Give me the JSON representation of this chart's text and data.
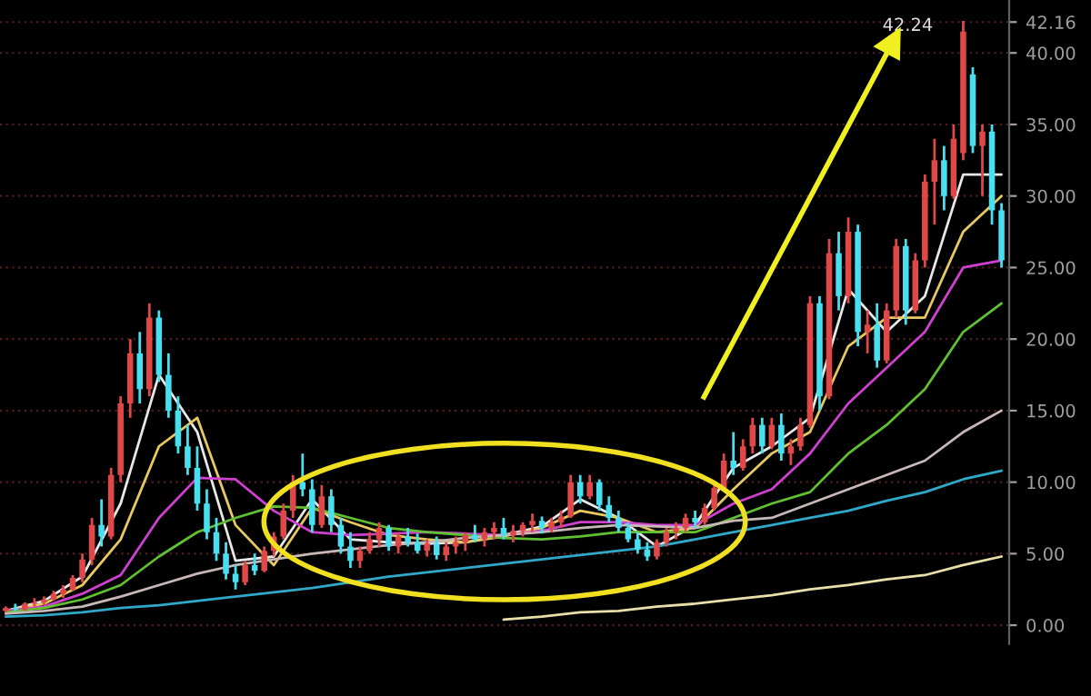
{
  "chart_data": {
    "type": "candlestick",
    "categories": [
      null,
      null,
      null,
      null,
      null,
      null,
      null,
      null,
      null,
      null,
      null,
      null,
      null,
      null,
      null,
      null,
      null,
      null,
      null,
      null,
      null,
      null,
      null,
      null,
      null,
      null,
      null,
      null,
      null,
      null,
      null,
      null,
      null,
      null,
      null,
      null,
      null,
      null,
      null,
      null,
      null,
      null,
      null,
      null,
      null,
      null,
      null,
      null,
      null,
      null,
      null,
      null,
      null,
      null,
      null,
      null,
      null,
      null,
      null,
      null,
      null,
      null,
      null,
      null,
      null,
      null,
      null,
      null,
      null,
      null,
      null,
      null,
      null,
      null,
      null,
      null,
      null,
      null,
      null,
      null,
      null,
      null,
      null,
      null,
      null,
      null,
      null,
      null,
      null,
      null,
      null,
      null,
      null,
      null,
      null,
      null,
      null,
      null,
      null,
      null,
      null,
      null,
      null,
      null,
      null
    ],
    "ohlc": [
      [
        1.0,
        1.3,
        0.9,
        1.2
      ],
      [
        1.2,
        1.5,
        1.0,
        1.1
      ],
      [
        1.1,
        1.6,
        1.0,
        1.5
      ],
      [
        1.5,
        1.9,
        1.3,
        1.6
      ],
      [
        1.6,
        2.0,
        1.4,
        1.8
      ],
      [
        1.8,
        2.4,
        1.7,
        2.2
      ],
      [
        2.2,
        2.8,
        1.9,
        2.5
      ],
      [
        2.5,
        3.5,
        2.4,
        3.3
      ],
      [
        3.3,
        5.0,
        3.0,
        4.6
      ],
      [
        4.6,
        7.5,
        4.2,
        7.0
      ],
      [
        7.0,
        8.8,
        5.5,
        6.2
      ],
      [
        6.2,
        11.0,
        6.0,
        10.5
      ],
      [
        10.5,
        16.0,
        10.0,
        15.5
      ],
      [
        15.5,
        20.0,
        14.5,
        19.0
      ],
      [
        19.0,
        20.5,
        15.5,
        16.5
      ],
      [
        16.5,
        22.5,
        16.0,
        21.5
      ],
      [
        21.5,
        22.0,
        17.0,
        17.5
      ],
      [
        17.5,
        19.0,
        14.5,
        15.0
      ],
      [
        15.0,
        16.0,
        12.0,
        12.5
      ],
      [
        12.5,
        14.0,
        10.5,
        11.0
      ],
      [
        11.0,
        12.5,
        8.0,
        8.5
      ],
      [
        8.5,
        9.5,
        6.0,
        6.5
      ],
      [
        6.5,
        7.5,
        4.5,
        5.0
      ],
      [
        5.0,
        5.8,
        3.2,
        3.6
      ],
      [
        3.6,
        4.2,
        2.5,
        3.0
      ],
      [
        3.0,
        4.5,
        2.8,
        4.2
      ],
      [
        4.2,
        5.0,
        3.5,
        3.8
      ],
      [
        3.8,
        5.5,
        3.7,
        5.2
      ],
      [
        5.2,
        6.5,
        4.8,
        6.2
      ],
      [
        6.2,
        8.5,
        6.0,
        8.0
      ],
      [
        8.0,
        10.5,
        7.5,
        10.0
      ],
      [
        10.0,
        12.0,
        9.0,
        9.5
      ],
      [
        9.5,
        10.2,
        6.5,
        7.0
      ],
      [
        7.0,
        9.8,
        6.8,
        9.0
      ],
      [
        9.0,
        9.5,
        6.5,
        7.0
      ],
      [
        7.0,
        7.5,
        5.0,
        5.5
      ],
      [
        5.5,
        6.5,
        4.0,
        4.5
      ],
      [
        4.5,
        5.5,
        4.0,
        5.2
      ],
      [
        5.2,
        6.5,
        5.0,
        6.0
      ],
      [
        6.0,
        7.2,
        5.5,
        6.8
      ],
      [
        6.8,
        7.0,
        5.2,
        5.5
      ],
      [
        5.5,
        6.5,
        5.0,
        6.2
      ],
      [
        6.2,
        6.8,
        5.5,
        5.8
      ],
      [
        5.8,
        6.4,
        5.0,
        5.2
      ],
      [
        5.2,
        6.0,
        4.8,
        5.7
      ],
      [
        5.7,
        6.2,
        4.6,
        4.9
      ],
      [
        4.9,
        5.8,
        4.5,
        5.5
      ],
      [
        5.5,
        6.2,
        5.0,
        5.8
      ],
      [
        5.8,
        6.5,
        5.2,
        6.3
      ],
      [
        6.3,
        7.0,
        5.8,
        6.0
      ],
      [
        6.0,
        6.8,
        5.5,
        6.5
      ],
      [
        6.5,
        7.2,
        6.0,
        6.8
      ],
      [
        6.8,
        7.5,
        6.0,
        6.3
      ],
      [
        6.3,
        7.0,
        5.8,
        6.6
      ],
      [
        6.6,
        7.2,
        6.2,
        7.0
      ],
      [
        7.0,
        7.8,
        6.5,
        7.3
      ],
      [
        7.3,
        7.6,
        6.4,
        6.8
      ],
      [
        6.8,
        7.5,
        6.5,
        7.2
      ],
      [
        7.2,
        8.0,
        6.8,
        7.6
      ],
      [
        7.6,
        10.5,
        7.5,
        10.0
      ],
      [
        10.0,
        10.5,
        8.5,
        9.0
      ],
      [
        9.0,
        10.5,
        8.8,
        10.0
      ],
      [
        10.0,
        10.2,
        8.0,
        8.4
      ],
      [
        8.4,
        9.0,
        7.2,
        7.5
      ],
      [
        7.5,
        8.0,
        6.5,
        6.8
      ],
      [
        6.8,
        7.2,
        5.8,
        6.0
      ],
      [
        6.0,
        6.5,
        5.0,
        5.3
      ],
      [
        5.3,
        5.8,
        4.5,
        4.8
      ],
      [
        4.8,
        6.0,
        4.6,
        5.8
      ],
      [
        5.8,
        6.8,
        5.5,
        6.5
      ],
      [
        6.5,
        7.2,
        6.0,
        6.8
      ],
      [
        6.8,
        7.8,
        6.5,
        7.5
      ],
      [
        7.5,
        8.0,
        6.8,
        7.2
      ],
      [
        7.2,
        8.5,
        7.0,
        8.2
      ],
      [
        8.2,
        10.0,
        8.0,
        9.6
      ],
      [
        9.6,
        12.0,
        9.4,
        11.5
      ],
      [
        11.5,
        13.5,
        10.5,
        11.0
      ],
      [
        11.0,
        13.0,
        10.8,
        12.5
      ],
      [
        12.5,
        14.5,
        12.0,
        14.0
      ],
      [
        14.0,
        14.5,
        12.0,
        12.5
      ],
      [
        12.5,
        14.5,
        12.3,
        14.0
      ],
      [
        14.0,
        14.8,
        11.5,
        12.0
      ],
      [
        12.0,
        13.0,
        11.2,
        12.5
      ],
      [
        12.5,
        14.5,
        12.2,
        14.0
      ],
      [
        14.0,
        23.0,
        13.8,
        22.5
      ],
      [
        22.5,
        23.0,
        15.0,
        16.0
      ],
      [
        16.0,
        27.0,
        15.8,
        26.0
      ],
      [
        26.0,
        27.5,
        22.0,
        23.0
      ],
      [
        23.0,
        28.5,
        22.5,
        27.5
      ],
      [
        27.5,
        28.0,
        19.5,
        20.5
      ],
      [
        20.5,
        22.0,
        19.0,
        21.0
      ],
      [
        21.0,
        22.5,
        18.0,
        18.5
      ],
      [
        18.5,
        22.5,
        18.3,
        22.0
      ],
      [
        22.0,
        27.0,
        21.5,
        26.5
      ],
      [
        26.5,
        27.0,
        21.0,
        22.0
      ],
      [
        22.0,
        26.0,
        21.8,
        25.5
      ],
      [
        25.5,
        31.5,
        25.0,
        31.0
      ],
      [
        31.0,
        34.0,
        28.0,
        32.5
      ],
      [
        32.5,
        33.5,
        29.0,
        30.0
      ],
      [
        30.0,
        35.0,
        29.8,
        34.0
      ],
      [
        33.0,
        42.24,
        32.5,
        41.5
      ],
      [
        38.5,
        39.0,
        33.0,
        33.5
      ],
      [
        33.5,
        35.0,
        30.0,
        34.5
      ],
      [
        34.5,
        35.0,
        28.0,
        29.0
      ],
      [
        29.0,
        29.5,
        25.0,
        25.5
      ]
    ],
    "colors": [
      "#e04848",
      "#48e0f0",
      "#e04848",
      "#e04848",
      "#e04848",
      "#e04848",
      "#e04848",
      "#e04848",
      "#e04848",
      "#e04848",
      "#48e0f0",
      "#e04848",
      "#e04848",
      "#e04848",
      "#48e0f0",
      "#e04848",
      "#48e0f0",
      "#48e0f0",
      "#48e0f0",
      "#48e0f0",
      "#48e0f0",
      "#48e0f0",
      "#48e0f0",
      "#48e0f0",
      "#48e0f0",
      "#e04848",
      "#48e0f0",
      "#e04848",
      "#e04848",
      "#e04848",
      "#e04848",
      "#48e0f0",
      "#48e0f0",
      "#e04848",
      "#48e0f0",
      "#48e0f0",
      "#48e0f0",
      "#e04848",
      "#e04848",
      "#e04848",
      "#48e0f0",
      "#e04848",
      "#48e0f0",
      "#48e0f0",
      "#e04848",
      "#48e0f0",
      "#e04848",
      "#e04848",
      "#e04848",
      "#48e0f0",
      "#e04848",
      "#e04848",
      "#48e0f0",
      "#e04848",
      "#e04848",
      "#e04848",
      "#48e0f0",
      "#e04848",
      "#e04848",
      "#e04848",
      "#48e0f0",
      "#e04848",
      "#48e0f0",
      "#48e0f0",
      "#48e0f0",
      "#48e0f0",
      "#48e0f0",
      "#48e0f0",
      "#e04848",
      "#e04848",
      "#e04848",
      "#e04848",
      "#48e0f0",
      "#e04848",
      "#e04848",
      "#e04848",
      "#48e0f0",
      "#e04848",
      "#e04848",
      "#48e0f0",
      "#e04848",
      "#48e0f0",
      "#e04848",
      "#e04848",
      "#e04848",
      "#48e0f0",
      "#e04848",
      "#48e0f0",
      "#e04848",
      "#48e0f0",
      "#e04848",
      "#48e0f0",
      "#e04848",
      "#e04848",
      "#48e0f0",
      "#e04848",
      "#e04848",
      "#e04848",
      "#48e0f0",
      "#e04848",
      "#e04848",
      "#48e0f0",
      "#e04848",
      "#48e0f0",
      "#48e0f0"
    ],
    "series": [
      {
        "type": "line",
        "color": "#e8e8e8",
        "values": [
          1.0,
          null,
          null,
          null,
          1.7,
          null,
          null,
          null,
          3.4,
          null,
          null,
          null,
          8.5,
          null,
          null,
          null,
          17.5,
          null,
          null,
          null,
          13.5,
          null,
          null,
          null,
          4.5,
          null,
          null,
          null,
          4.8,
          null,
          null,
          null,
          8.8,
          null,
          null,
          null,
          6.0,
          null,
          null,
          null,
          5.8,
          null,
          null,
          null,
          5.7,
          null,
          null,
          null,
          5.8,
          null,
          null,
          null,
          6.3,
          null,
          null,
          null,
          6.9,
          null,
          null,
          null,
          8.8,
          null,
          null,
          null,
          7.5,
          null,
          null,
          null,
          5.5,
          null,
          null,
          null,
          7.0,
          null,
          null,
          null,
          11.0,
          null,
          null,
          null,
          12.5,
          null,
          null,
          null,
          14.5,
          null,
          null,
          null,
          23.5,
          null,
          null,
          null,
          20.5,
          null,
          null,
          null,
          23.0,
          null,
          null,
          null,
          31.5,
          null,
          null,
          null,
          31.5
        ]
      },
      {
        "type": "line",
        "color": "#e8c860",
        "values": [
          1.0,
          null,
          null,
          null,
          1.5,
          null,
          null,
          null,
          2.8,
          null,
          null,
          null,
          6.0,
          null,
          null,
          null,
          12.5,
          null,
          null,
          null,
          14.5,
          null,
          null,
          null,
          7.0,
          null,
          null,
          null,
          4.2,
          null,
          null,
          null,
          8.2,
          null,
          null,
          null,
          7.2,
          null,
          null,
          null,
          6.3,
          null,
          null,
          null,
          6.0,
          null,
          null,
          null,
          5.8,
          null,
          null,
          null,
          6.2,
          null,
          null,
          null,
          6.8,
          null,
          null,
          null,
          8.0,
          null,
          null,
          null,
          7.5,
          null,
          null,
          null,
          6.5,
          null,
          null,
          null,
          6.8,
          null,
          null,
          null,
          9.5,
          null,
          null,
          null,
          12.0,
          null,
          null,
          null,
          13.5,
          null,
          null,
          null,
          19.5,
          null,
          null,
          null,
          21.5,
          null,
          null,
          null,
          21.5,
          null,
          null,
          null,
          27.5,
          null,
          null,
          null,
          30.0
        ]
      },
      {
        "type": "line",
        "color": "#d040d0",
        "values": [
          1.0,
          null,
          null,
          null,
          1.3,
          null,
          null,
          null,
          2.2,
          null,
          null,
          null,
          3.5,
          null,
          null,
          null,
          7.5,
          null,
          null,
          null,
          10.3,
          null,
          null,
          null,
          10.2,
          null,
          null,
          null,
          8.0,
          null,
          null,
          null,
          6.5,
          null,
          null,
          null,
          6.3,
          null,
          null,
          null,
          6.4,
          null,
          null,
          null,
          6.5,
          null,
          null,
          null,
          6.4,
          null,
          null,
          null,
          6.3,
          null,
          null,
          null,
          6.6,
          null,
          null,
          null,
          7.2,
          null,
          null,
          null,
          7.2,
          null,
          null,
          null,
          7.0,
          null,
          null,
          null,
          7.0,
          null,
          null,
          null,
          8.5,
          null,
          null,
          null,
          9.5,
          null,
          null,
          null,
          12.0,
          null,
          null,
          null,
          15.5,
          null,
          null,
          null,
          18.0,
          null,
          null,
          null,
          20.5,
          null,
          null,
          null,
          25.0,
          null,
          null,
          null,
          25.5
        ]
      },
      {
        "type": "line",
        "color": "#60c030",
        "values": [
          0.9,
          null,
          null,
          null,
          1.2,
          null,
          null,
          null,
          1.8,
          null,
          null,
          null,
          2.8,
          null,
          null,
          null,
          4.8,
          null,
          null,
          null,
          6.5,
          null,
          null,
          null,
          7.5,
          null,
          null,
          null,
          8.3,
          null,
          null,
          null,
          8.2,
          null,
          null,
          null,
          7.5,
          null,
          null,
          null,
          6.8,
          null,
          null,
          null,
          6.5,
          null,
          null,
          null,
          6.3,
          null,
          null,
          null,
          6.1,
          null,
          null,
          null,
          6.0,
          null,
          null,
          null,
          6.2,
          null,
          null,
          null,
          6.5,
          null,
          null,
          null,
          6.5,
          null,
          null,
          null,
          6.5,
          null,
          null,
          null,
          7.5,
          null,
          null,
          null,
          8.5,
          null,
          null,
          null,
          9.3,
          null,
          null,
          null,
          12.0,
          null,
          null,
          null,
          14.0,
          null,
          null,
          null,
          16.5,
          null,
          null,
          null,
          20.5,
          null,
          null,
          null,
          22.5
        ]
      },
      {
        "type": "line",
        "color": "#c8b8b8",
        "values": [
          0.8,
          null,
          null,
          null,
          1.0,
          null,
          null,
          null,
          1.3,
          null,
          null,
          null,
          2.0,
          null,
          null,
          null,
          2.8,
          null,
          null,
          null,
          3.6,
          null,
          null,
          null,
          4.2,
          null,
          null,
          null,
          4.6,
          null,
          null,
          null,
          5.0,
          null,
          null,
          null,
          5.3,
          null,
          null,
          null,
          5.6,
          null,
          null,
          null,
          5.8,
          null,
          null,
          null,
          6.1,
          null,
          null,
          null,
          6.3,
          null,
          null,
          null,
          6.5,
          null,
          null,
          null,
          6.8,
          null,
          null,
          null,
          7.0,
          null,
          null,
          null,
          6.9,
          null,
          null,
          null,
          6.8,
          null,
          null,
          null,
          7.3,
          null,
          null,
          null,
          7.5,
          null,
          null,
          null,
          8.5,
          null,
          null,
          null,
          9.5,
          null,
          null,
          null,
          10.5,
          null,
          null,
          null,
          11.5,
          null,
          null,
          null,
          13.5,
          null,
          null,
          null,
          15.0
        ]
      },
      {
        "type": "line",
        "color": "#30a8c8",
        "values": [
          0.6,
          null,
          null,
          null,
          0.7,
          null,
          null,
          null,
          0.9,
          null,
          null,
          null,
          1.2,
          null,
          null,
          null,
          1.4,
          null,
          null,
          null,
          1.7,
          null,
          null,
          null,
          2.0,
          null,
          null,
          null,
          2.3,
          null,
          null,
          null,
          2.6,
          null,
          null,
          null,
          3.0,
          null,
          null,
          null,
          3.4,
          null,
          null,
          null,
          3.7,
          null,
          null,
          null,
          4.0,
          null,
          null,
          null,
          4.3,
          null,
          null,
          null,
          4.6,
          null,
          null,
          null,
          4.9,
          null,
          null,
          null,
          5.2,
          null,
          null,
          null,
          5.5,
          null,
          null,
          null,
          6.0,
          null,
          null,
          null,
          6.5,
          null,
          null,
          null,
          7.0,
          null,
          null,
          null,
          7.5,
          null,
          null,
          null,
          8.0,
          null,
          null,
          null,
          8.7,
          null,
          null,
          null,
          9.3,
          null,
          null,
          null,
          10.2,
          null,
          null,
          null,
          10.8
        ]
      },
      {
        "type": "line",
        "color": "#e8e0a8",
        "values": [
          null,
          null,
          null,
          null,
          null,
          null,
          null,
          null,
          null,
          null,
          null,
          null,
          null,
          null,
          null,
          null,
          null,
          null,
          null,
          null,
          null,
          null,
          null,
          null,
          null,
          null,
          null,
          null,
          null,
          null,
          null,
          null,
          null,
          null,
          null,
          null,
          null,
          null,
          null,
          null,
          null,
          null,
          null,
          null,
          null,
          null,
          null,
          null,
          null,
          null,
          null,
          null,
          0.4,
          null,
          null,
          null,
          0.6,
          null,
          null,
          null,
          0.9,
          null,
          null,
          null,
          1.0,
          null,
          null,
          null,
          1.3,
          null,
          null,
          null,
          1.5,
          null,
          null,
          null,
          1.8,
          null,
          null,
          null,
          2.1,
          null,
          null,
          null,
          2.5,
          null,
          null,
          null,
          2.8,
          null,
          null,
          null,
          3.2,
          null,
          null,
          null,
          3.5,
          null,
          null,
          null,
          4.2,
          null,
          null,
          null,
          4.8
        ]
      }
    ],
    "ylim": [
      -1.3,
      43.7
    ],
    "yticks": [
      {
        "value": 0,
        "label": "0.00"
      },
      {
        "value": 5,
        "label": "5.00"
      },
      {
        "value": 10,
        "label": "10.00"
      },
      {
        "value": 15,
        "label": "15.00"
      },
      {
        "value": 20,
        "label": "20.00"
      },
      {
        "value": 25,
        "label": "25.00"
      },
      {
        "value": 30,
        "label": "30.00"
      },
      {
        "value": 35,
        "label": "35.00"
      },
      {
        "value": 40,
        "label": "40.00"
      },
      {
        "value": 42.16,
        "label": "42.16"
      }
    ],
    "grid": "y",
    "tick_labels": "y",
    "annotations": [
      "42.24"
    ]
  }
}
